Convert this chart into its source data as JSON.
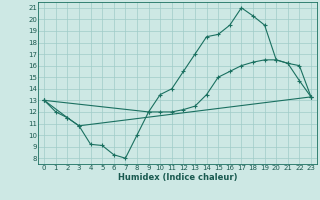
{
  "xlabel": "Humidex (Indice chaleur)",
  "bg_color": "#cde8e4",
  "grid_color": "#a0ccc8",
  "line_color": "#1a7060",
  "xlim": [
    -0.5,
    23.5
  ],
  "ylim": [
    7.5,
    21.5
  ],
  "xticks": [
    0,
    1,
    2,
    3,
    4,
    5,
    6,
    7,
    8,
    9,
    10,
    11,
    12,
    13,
    14,
    15,
    16,
    17,
    18,
    19,
    20,
    21,
    22,
    23
  ],
  "yticks": [
    8,
    9,
    10,
    11,
    12,
    13,
    14,
    15,
    16,
    17,
    18,
    19,
    20,
    21
  ],
  "line1_x": [
    0,
    1,
    2,
    3,
    4,
    5,
    6,
    7,
    8,
    9,
    10,
    11,
    12,
    13,
    14,
    15,
    16,
    17,
    18,
    19,
    20,
    21,
    22,
    23
  ],
  "line1_y": [
    13,
    12,
    11.5,
    10.8,
    9.2,
    9.1,
    8.3,
    8.0,
    10.0,
    12.0,
    13.5,
    14.0,
    15.5,
    17.0,
    18.5,
    18.7,
    19.5,
    21.0,
    20.3,
    19.5,
    16.5,
    16.2,
    14.7,
    13.3
  ],
  "line2_x": [
    0,
    2,
    3,
    23
  ],
  "line2_y": [
    13,
    11.5,
    10.8,
    13.3
  ],
  "line3_x": [
    0,
    9,
    10,
    11,
    12,
    13,
    14,
    15,
    16,
    17,
    18,
    19,
    20,
    21,
    22,
    23
  ],
  "line3_y": [
    13,
    12.0,
    12.0,
    12.0,
    12.2,
    12.5,
    13.5,
    15.0,
    15.5,
    16.0,
    16.3,
    16.5,
    16.5,
    16.2,
    16.0,
    13.3
  ]
}
